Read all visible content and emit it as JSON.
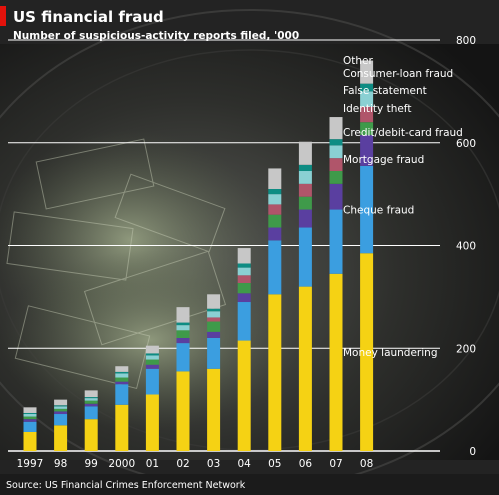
{
  "chart_data": {
    "type": "bar",
    "stacked": true,
    "title": "US financial fraud",
    "subtitle": "Number of suspicious-activity reports filed, '000",
    "source": "Source: US Financial Crimes Enforcement Network",
    "categories": [
      "1997",
      "98",
      "99",
      "2000",
      "01",
      "02",
      "03",
      "04",
      "05",
      "06",
      "07",
      "08"
    ],
    "ylim": [
      0,
      800
    ],
    "yticks": [
      0,
      200,
      400,
      600,
      800
    ],
    "y_axis_side": "right",
    "grid": true,
    "legend_placement": "right, labels beside last bar",
    "series": [
      {
        "name": "Money laundering",
        "color": "#f5d214",
        "values": [
          37,
          50,
          62,
          90,
          110,
          155,
          160,
          215,
          305,
          320,
          345,
          385
        ]
      },
      {
        "name": "Cheque fraud",
        "color": "#3b9ee0",
        "values": [
          20,
          22,
          25,
          40,
          50,
          55,
          60,
          75,
          105,
          115,
          125,
          170
        ]
      },
      {
        "name": "Mortgage fraud",
        "color": "#5a3fa0",
        "values": [
          5,
          5,
          5,
          5,
          8,
          10,
          12,
          17,
          25,
          35,
          50,
          60
        ]
      },
      {
        "name": "Credit/debit-card fraud",
        "color": "#3f9a4a",
        "values": [
          5,
          5,
          6,
          8,
          10,
          15,
          20,
          20,
          25,
          25,
          25,
          25
        ]
      },
      {
        "name": "Identity theft",
        "color": "#b0556a",
        "values": [
          0,
          0,
          0,
          0,
          0,
          0,
          8,
          15,
          20,
          25,
          25,
          30
        ]
      },
      {
        "name": "False statement",
        "color": "#8ad0d3",
        "values": [
          5,
          5,
          5,
          8,
          8,
          10,
          12,
          15,
          20,
          25,
          25,
          30
        ]
      },
      {
        "name": "Consumer-loan fraud",
        "color": "#0e8c83",
        "values": [
          2,
          2,
          2,
          3,
          4,
          5,
          5,
          8,
          10,
          12,
          12,
          15
        ]
      },
      {
        "name": "Other",
        "color": "#c7c7c7",
        "values": [
          11,
          11,
          13,
          11,
          15,
          30,
          28,
          30,
          40,
          45,
          43,
          45
        ]
      }
    ]
  }
}
